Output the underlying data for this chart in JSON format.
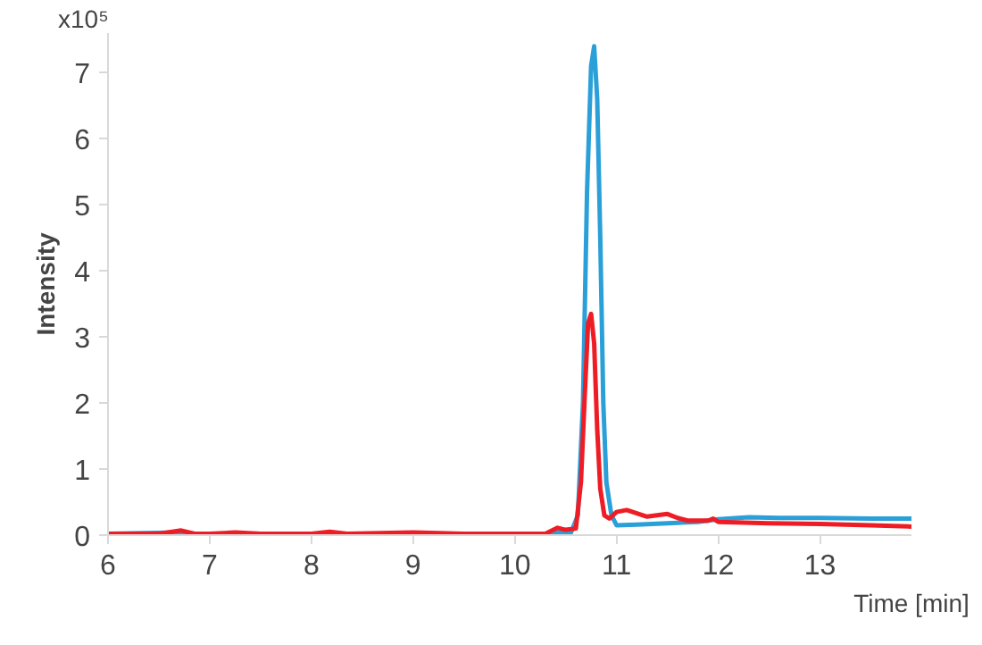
{
  "chart_data": {
    "type": "line",
    "xlabel": "Time [min]",
    "ylabel": "Intensity",
    "annotations": [
      "x10⁵"
    ],
    "xlim": [
      6,
      13.9
    ],
    "ylim": [
      0,
      7.6
    ],
    "xticks": [
      6,
      7,
      8,
      9,
      10,
      11,
      12,
      13
    ],
    "yticks": [
      0,
      1,
      2,
      3,
      4,
      5,
      6,
      7
    ],
    "grid": false,
    "marker": "none",
    "line_style": "solid",
    "series": [
      {
        "color": "#2a9fd8",
        "x": [
          6,
          6.7,
          7,
          8,
          9,
          10,
          10.35,
          10.45,
          10.55,
          10.62,
          10.67,
          10.71,
          10.75,
          10.78,
          10.81,
          10.84,
          10.87,
          10.9,
          10.95,
          11,
          11.2,
          11.5,
          11.8,
          12,
          12.3,
          12.6,
          13,
          13.5,
          13.9
        ],
        "values": [
          0.02,
          0.04,
          null,
          null,
          null,
          null,
          0.02,
          0.05,
          0.03,
          0.3,
          2.0,
          5.2,
          7.1,
          7.4,
          6.6,
          4.5,
          2.0,
          0.8,
          0.3,
          0.15,
          0.16,
          0.18,
          0.2,
          0.24,
          0.27,
          0.26,
          0.26,
          0.25,
          0.25
        ]
      },
      {
        "color": "#ee1c25",
        "x": [
          6,
          6.5,
          6.72,
          6.85,
          7,
          7.25,
          7.5,
          8,
          8.18,
          8.35,
          9,
          9.5,
          10,
          10.3,
          10.42,
          10.5,
          10.6,
          10.65,
          10.69,
          10.72,
          10.75,
          10.78,
          10.81,
          10.84,
          10.88,
          10.93,
          11,
          11.1,
          11.2,
          11.3,
          11.4,
          11.5,
          11.6,
          11.7,
          11.9,
          11.95,
          12,
          12.5,
          13,
          13.5,
          13.9
        ],
        "values": [
          0.02,
          0.02,
          0.07,
          0.02,
          0.02,
          0.04,
          0.02,
          0.02,
          0.05,
          0.02,
          0.04,
          0.02,
          0.02,
          0.02,
          0.11,
          0.08,
          0.1,
          0.8,
          2.2,
          3.2,
          3.35,
          2.9,
          1.6,
          0.7,
          0.3,
          0.25,
          0.35,
          0.38,
          0.33,
          0.28,
          0.3,
          0.32,
          0.26,
          0.22,
          0.22,
          0.25,
          0.2,
          0.18,
          0.17,
          0.15,
          0.13
        ]
      }
    ]
  }
}
